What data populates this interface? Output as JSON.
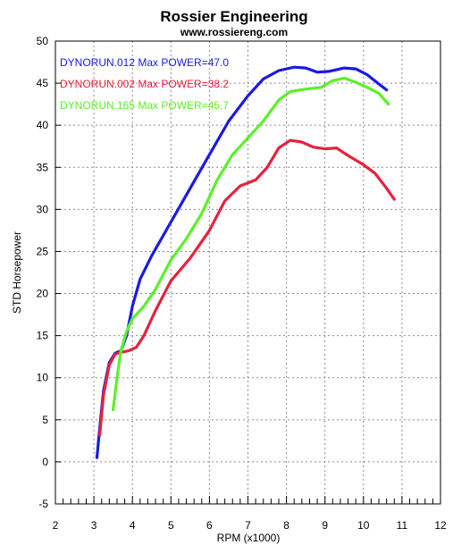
{
  "chart_data": {
    "type": "line",
    "title": "Rossier Engineering",
    "subtitle": "www.rossiereng.com",
    "xlabel": "RPM (x1000)",
    "ylabel": "STD Horsepower",
    "xlim": [
      2,
      12
    ],
    "ylim": [
      -5,
      50
    ],
    "xticks": [
      2,
      3,
      4,
      5,
      6,
      7,
      8,
      9,
      10,
      11,
      12
    ],
    "yticks": [
      -5,
      0,
      5,
      10,
      15,
      20,
      25,
      30,
      35,
      40,
      45,
      50
    ],
    "grid": true,
    "legend_position": "top-left",
    "series": [
      {
        "name": "DYNORUN.012",
        "legend_label": "DYNORUN.012  Max POWER=47.0",
        "color": "#1a1ae6",
        "points": [
          [
            3.08,
            0.5
          ],
          [
            3.15,
            4
          ],
          [
            3.25,
            8.5
          ],
          [
            3.4,
            11.8
          ],
          [
            3.55,
            12.9
          ],
          [
            3.7,
            13.2
          ],
          [
            3.85,
            15
          ],
          [
            4.0,
            18.5
          ],
          [
            4.2,
            21.7
          ],
          [
            4.5,
            24.5
          ],
          [
            5.0,
            28.5
          ],
          [
            5.5,
            32.5
          ],
          [
            6.0,
            36.5
          ],
          [
            6.5,
            40.5
          ],
          [
            7.0,
            43.5
          ],
          [
            7.4,
            45.5
          ],
          [
            7.8,
            46.5
          ],
          [
            8.2,
            46.9
          ],
          [
            8.5,
            46.8
          ],
          [
            8.8,
            46.3
          ],
          [
            9.1,
            46.4
          ],
          [
            9.5,
            46.8
          ],
          [
            9.8,
            46.7
          ],
          [
            10.1,
            46
          ],
          [
            10.4,
            44.9
          ],
          [
            10.6,
            44.2
          ]
        ]
      },
      {
        "name": "DYNORUN.002",
        "legend_label": "DYNORUN.002  Max POWER=38.2",
        "color": "#e8213c",
        "points": [
          [
            3.15,
            3.2
          ],
          [
            3.25,
            8
          ],
          [
            3.4,
            11.5
          ],
          [
            3.55,
            12.8
          ],
          [
            3.7,
            13
          ],
          [
            3.9,
            13.2
          ],
          [
            4.1,
            13.6
          ],
          [
            4.3,
            15
          ],
          [
            4.6,
            18
          ],
          [
            5.0,
            21.5
          ],
          [
            5.5,
            24.2
          ],
          [
            6.0,
            27.5
          ],
          [
            6.4,
            31
          ],
          [
            6.8,
            32.8
          ],
          [
            7.2,
            33.5
          ],
          [
            7.5,
            35
          ],
          [
            7.8,
            37.3
          ],
          [
            8.1,
            38.2
          ],
          [
            8.4,
            38
          ],
          [
            8.7,
            37.4
          ],
          [
            9.0,
            37.2
          ],
          [
            9.3,
            37.3
          ],
          [
            9.6,
            36.4
          ],
          [
            10.0,
            35.3
          ],
          [
            10.3,
            34.3
          ],
          [
            10.6,
            32.5
          ],
          [
            10.8,
            31.2
          ]
        ]
      },
      {
        "name": "DYNORUN.165",
        "legend_label": "DYNORUN.165  Max POWER=45.7",
        "color": "#5cf028",
        "points": [
          [
            3.5,
            6.2
          ],
          [
            3.6,
            10
          ],
          [
            3.7,
            13.2
          ],
          [
            3.85,
            15.5
          ],
          [
            4.0,
            17
          ],
          [
            4.3,
            18.5
          ],
          [
            4.6,
            20.5
          ],
          [
            5.0,
            24
          ],
          [
            5.4,
            26.5
          ],
          [
            5.8,
            29.5
          ],
          [
            6.2,
            33.5
          ],
          [
            6.6,
            36.5
          ],
          [
            7.0,
            38.5
          ],
          [
            7.4,
            40.5
          ],
          [
            7.8,
            43
          ],
          [
            8.1,
            44
          ],
          [
            8.5,
            44.3
          ],
          [
            8.9,
            44.5
          ],
          [
            9.2,
            45.3
          ],
          [
            9.5,
            45.6
          ],
          [
            9.8,
            45.1
          ],
          [
            10.1,
            44.5
          ],
          [
            10.4,
            43.8
          ],
          [
            10.65,
            42.5
          ]
        ]
      }
    ]
  }
}
